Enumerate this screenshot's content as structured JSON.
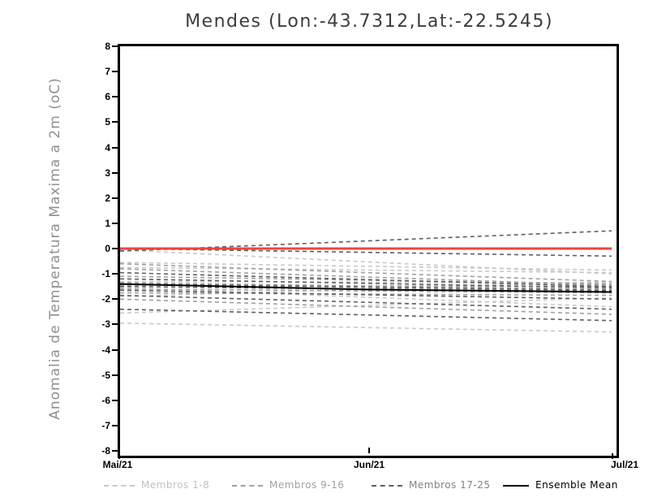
{
  "title": "Mendes (Lon:-43.7312,Lat:-22.5245)",
  "chart_data": {
    "type": "line",
    "title": "Mendes (Lon:-43.7312,Lat:-22.5245)",
    "xlabel": "",
    "ylabel": "Anomalia de Temperatura Maxima a 2m (oC)",
    "ylim": [
      -8,
      8
    ],
    "grid": false,
    "legend_position": "bottom",
    "x_ticks": [
      "Mai/21",
      "Jun/21",
      "Jul/21"
    ],
    "y_tick_labels": [
      "8",
      "7",
      "6",
      "5",
      "4",
      "3",
      "2",
      "1",
      "0",
      "-1",
      "-2",
      "-3",
      "-4",
      "-5",
      "-6",
      "-7",
      "-8"
    ],
    "zero_line": {
      "name": "zero-reference",
      "color": "#ee4343",
      "values": [
        0,
        0
      ]
    },
    "ensemble_mean": {
      "name": "Ensemble Mean",
      "color": "#000000",
      "values": [
        -1.4,
        -1.62,
        -1.72
      ]
    },
    "groups": [
      {
        "name": "Membros 1-8",
        "color": "#c9c9c9",
        "label_color": "#c2c2c2"
      },
      {
        "name": "Membros 9-16",
        "color": "#a0a0a0",
        "label_color": "#a0a0a0"
      },
      {
        "name": "Membros 17-25",
        "color": "#5f5f5f",
        "label_color": "#828282"
      }
    ],
    "members": [
      {
        "group": 0,
        "values": [
          -0.05,
          -1.0
        ]
      },
      {
        "group": 0,
        "values": [
          -0.55,
          -0.85
        ]
      },
      {
        "group": 0,
        "values": [
          -0.75,
          -0.95
        ]
      },
      {
        "group": 0,
        "values": [
          -1.3,
          -1.35
        ]
      },
      {
        "group": 0,
        "values": [
          -1.55,
          -2.3
        ]
      },
      {
        "group": 0,
        "values": [
          -1.9,
          -1.3
        ]
      },
      {
        "group": 0,
        "values": [
          -2.55,
          -1.95
        ]
      },
      {
        "group": 0,
        "values": [
          -2.95,
          -3.3
        ]
      },
      {
        "group": 1,
        "values": [
          -0.6,
          -1.3
        ]
      },
      {
        "group": 1,
        "values": [
          -0.8,
          -1.45
        ]
      },
      {
        "group": 1,
        "values": [
          -1.1,
          -1.4
        ]
      },
      {
        "group": 1,
        "values": [
          -1.35,
          -1.6
        ]
      },
      {
        "group": 1,
        "values": [
          -1.45,
          -1.5
        ]
      },
      {
        "group": 1,
        "values": [
          -1.6,
          -1.75
        ]
      },
      {
        "group": 1,
        "values": [
          -1.75,
          -1.85
        ]
      },
      {
        "group": 1,
        "values": [
          -2.0,
          -2.6
        ]
      },
      {
        "group": 2,
        "values": [
          -0.1,
          0.7
        ]
      },
      {
        "group": 2,
        "values": [
          0.0,
          -0.3
        ]
      },
      {
        "group": 2,
        "values": [
          -0.95,
          -1.5
        ]
      },
      {
        "group": 2,
        "values": [
          -1.2,
          -1.55
        ]
      },
      {
        "group": 2,
        "values": [
          -1.4,
          -1.65
        ]
      },
      {
        "group": 2,
        "values": [
          -1.5,
          -1.7
        ]
      },
      {
        "group": 2,
        "values": [
          -1.65,
          -2.0
        ]
      },
      {
        "group": 2,
        "values": [
          -1.85,
          -2.4
        ]
      },
      {
        "group": 2,
        "values": [
          -2.4,
          -2.85
        ]
      }
    ]
  }
}
